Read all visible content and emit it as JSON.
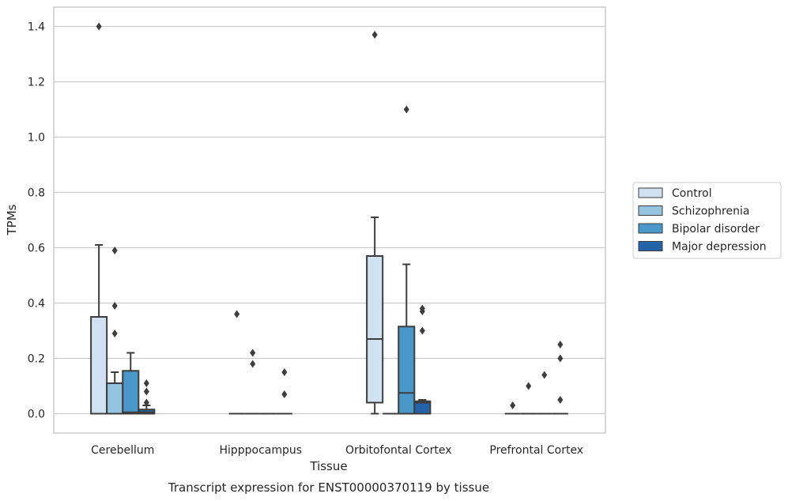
{
  "chart_data": {
    "type": "boxplot",
    "title": "",
    "caption": "Transcript expression for ENST00000370119 by tissue",
    "xlabel": "Tissue",
    "ylabel": "TPMs",
    "ylim": [
      -0.07,
      1.47
    ],
    "yticks": [
      "0.0",
      "0.2",
      "0.4",
      "0.6",
      "0.8",
      "1.0",
      "1.2",
      "1.4"
    ],
    "grid": "horizontal",
    "legend_position": "right",
    "categories": [
      "Cerebellum",
      "Hipppocampus",
      "Orbitofontal Cortex",
      "Prefrontal Cortex"
    ],
    "series": [
      {
        "name": "Control",
        "color": "#d0e1f2",
        "boxes": [
          {
            "q1": 0.0,
            "median": 0.0,
            "q3": 0.35,
            "whisker_low": 0.0,
            "whisker_high": 0.61,
            "outliers": [
              1.4
            ]
          },
          {
            "q1": 0.0,
            "median": 0.0,
            "q3": 0.0,
            "whisker_low": 0.0,
            "whisker_high": 0.0,
            "outliers": [
              0.36
            ]
          },
          {
            "q1": 0.04,
            "median": 0.27,
            "q3": 0.57,
            "whisker_low": 0.0,
            "whisker_high": 0.71,
            "outliers": [
              1.37
            ]
          },
          {
            "q1": 0.0,
            "median": 0.0,
            "q3": 0.0,
            "whisker_low": 0.0,
            "whisker_high": 0.0,
            "outliers": [
              0.03
            ]
          }
        ]
      },
      {
        "name": "Schizophrenia",
        "color": "#94c4df",
        "boxes": [
          {
            "q1": 0.0,
            "median": 0.0,
            "q3": 0.11,
            "whisker_low": 0.0,
            "whisker_high": 0.15,
            "outliers": [
              0.29,
              0.39,
              0.59
            ]
          },
          {
            "q1": 0.0,
            "median": 0.0,
            "q3": 0.0,
            "whisker_low": 0.0,
            "whisker_high": 0.0,
            "outliers": [
              0.18,
              0.22
            ]
          },
          {
            "q1": 0.0,
            "median": 0.0,
            "q3": 0.0,
            "whisker_low": 0.0,
            "whisker_high": 0.0,
            "outliers": []
          },
          {
            "q1": 0.0,
            "median": 0.0,
            "q3": 0.0,
            "whisker_low": 0.0,
            "whisker_high": 0.0,
            "outliers": [
              0.1
            ]
          }
        ]
      },
      {
        "name": "Bipolar disorder",
        "color": "#4a98c9",
        "boxes": [
          {
            "q1": 0.0,
            "median": 0.005,
            "q3": 0.155,
            "whisker_low": 0.0,
            "whisker_high": 0.22,
            "outliers": []
          },
          {
            "q1": 0.0,
            "median": 0.0,
            "q3": 0.0,
            "whisker_low": 0.0,
            "whisker_high": 0.0,
            "outliers": []
          },
          {
            "q1": 0.0,
            "median": 0.075,
            "q3": 0.315,
            "whisker_low": 0.0,
            "whisker_high": 0.54,
            "outliers": [
              1.1
            ]
          },
          {
            "q1": 0.0,
            "median": 0.0,
            "q3": 0.0,
            "whisker_low": 0.0,
            "whisker_high": 0.0,
            "outliers": [
              0.14
            ]
          }
        ]
      },
      {
        "name": "Major depression",
        "color": "#2264a7",
        "boxes": [
          {
            "q1": 0.0,
            "median": 0.005,
            "q3": 0.015,
            "whisker_low": 0.0,
            "whisker_high": 0.03,
            "outliers": [
              0.04,
              0.08,
              0.11
            ]
          },
          {
            "q1": 0.0,
            "median": 0.0,
            "q3": 0.0,
            "whisker_low": 0.0,
            "whisker_high": 0.0,
            "outliers": [
              0.07,
              0.15
            ]
          },
          {
            "q1": 0.0,
            "median": 0.04,
            "q3": 0.045,
            "whisker_low": 0.0,
            "whisker_high": 0.05,
            "outliers": [
              0.3,
              0.37,
              0.38
            ]
          },
          {
            "q1": 0.0,
            "median": 0.0,
            "q3": 0.0,
            "whisker_low": 0.0,
            "whisker_high": 0.0,
            "outliers": [
              0.05,
              0.2,
              0.25
            ]
          }
        ]
      }
    ]
  }
}
